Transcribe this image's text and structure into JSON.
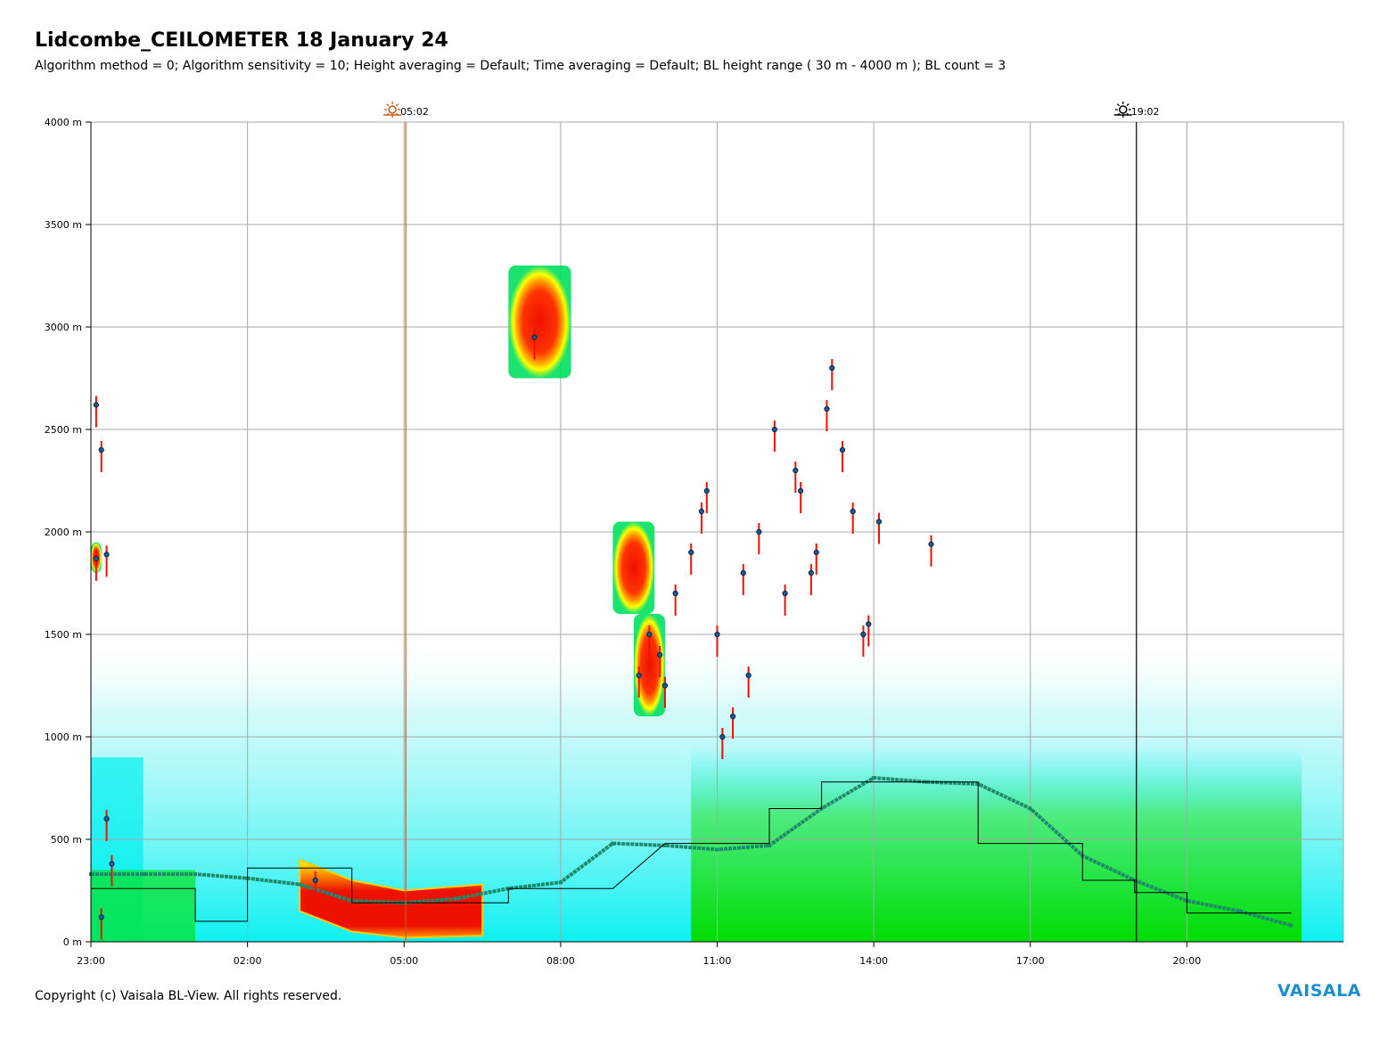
{
  "title": "Lidcombe_CEILOMETER 18 January 24",
  "subtitle": "Algorithm method = 0; Algorithm sensitivity = 10; Height averaging = Default; Time averaging = Default; BL height range ( 30 m - 4000 m ); BL count = 3",
  "copyright": "Copyright (c) Vaisala BL-View. All rights reserved.",
  "brand": "VAISALA",
  "brand_color": "#1a8fd0",
  "events": [
    {
      "label": "05:02",
      "hour": 6.033,
      "icon": "sunrise-icon",
      "color": "#c85a1a"
    },
    {
      "label": "19:02",
      "hour": 20.033,
      "icon": "sunset-icon",
      "color": "#000000"
    }
  ],
  "chart_data": {
    "type": "heatmap",
    "title": "Lidcombe_CEILOMETER 18 January 24",
    "xlabel": "",
    "ylabel": "",
    "x_range_hours_since_23": [
      0,
      24
    ],
    "x_ticks": [
      "23:00",
      "02:00",
      "05:00",
      "08:00",
      "11:00",
      "14:00",
      "17:00",
      "20:00"
    ],
    "x_tick_hours": [
      0,
      3,
      6,
      9,
      12,
      15,
      18,
      21
    ],
    "ylim": [
      0,
      4000
    ],
    "y_ticks": [
      "0 m",
      "500 m",
      "1000 m",
      "1500 m",
      "2000 m",
      "2500 m",
      "3000 m",
      "3500 m",
      "4000 m"
    ],
    "y_tick_values": [
      0,
      500,
      1000,
      1500,
      2000,
      2500,
      3000,
      3500,
      4000
    ],
    "grid": true,
    "colors": {
      "low": "#9ff5f5",
      "aerosol": "#00f0f0",
      "mid": "#00e000",
      "high": "#ffff00",
      "strong": "#ff8000",
      "max": "#ee1100",
      "bl_height": "#1e8a6a",
      "cloud_base": "#1a5a9a",
      "grey_marks": "#a0a0a0"
    },
    "cloud_layers": [
      {
        "start": 8.0,
        "end": 9.2,
        "bottom": 2750,
        "top": 3300
      },
      {
        "start": 10.0,
        "end": 10.8,
        "bottom": 1600,
        "top": 2050
      },
      {
        "start": 10.4,
        "end": 11.0,
        "bottom": 1100,
        "top": 1600
      },
      {
        "start": 0.0,
        "end": 0.2,
        "bottom": 1800,
        "top": 1950
      }
    ],
    "nocturnal_layer": [
      [
        4.0,
        300
      ],
      [
        5.0,
        200
      ],
      [
        6.0,
        150
      ],
      [
        7.5,
        180
      ]
    ],
    "bl_height_series": [
      [
        0.0,
        330
      ],
      [
        1.0,
        330
      ],
      [
        2.0,
        330
      ],
      [
        3.0,
        310
      ],
      [
        4.0,
        280
      ],
      [
        5.0,
        200
      ],
      [
        6.0,
        190
      ],
      [
        7.0,
        210
      ],
      [
        8.0,
        260
      ],
      [
        9.0,
        290
      ],
      [
        10.0,
        480
      ],
      [
        11.0,
        470
      ],
      [
        12.0,
        450
      ],
      [
        13.0,
        470
      ],
      [
        14.0,
        650
      ],
      [
        15.0,
        800
      ],
      [
        16.0,
        780
      ],
      [
        17.0,
        770
      ],
      [
        18.0,
        650
      ],
      [
        19.0,
        420
      ],
      [
        20.0,
        300
      ],
      [
        21.0,
        200
      ],
      [
        22.0,
        150
      ],
      [
        23.0,
        80
      ]
    ],
    "step_series": [
      [
        0.0,
        260
      ],
      [
        2.0,
        260
      ],
      [
        2.0,
        100
      ],
      [
        3.0,
        100
      ],
      [
        3.0,
        360
      ],
      [
        5.0,
        360
      ],
      [
        5.0,
        190
      ],
      [
        8.0,
        190
      ],
      [
        8.0,
        260
      ],
      [
        10.0,
        260
      ],
      [
        11.0,
        480
      ],
      [
        13.0,
        480
      ],
      [
        13.0,
        650
      ],
      [
        14.0,
        650
      ],
      [
        14.0,
        780
      ],
      [
        17.0,
        780
      ],
      [
        17.0,
        480
      ],
      [
        19.0,
        480
      ],
      [
        19.0,
        300
      ],
      [
        20.0,
        300
      ],
      [
        20.0,
        240
      ],
      [
        21.0,
        240
      ],
      [
        21.0,
        140
      ],
      [
        23.0,
        140
      ]
    ],
    "cloud_base_points": [
      [
        0.1,
        2620
      ],
      [
        0.2,
        2400
      ],
      [
        0.1,
        1870
      ],
      [
        0.3,
        1890
      ],
      [
        8.5,
        2950
      ],
      [
        10.5,
        1300
      ],
      [
        10.9,
        1400
      ],
      [
        11.2,
        1700
      ],
      [
        11.5,
        1900
      ],
      [
        11.8,
        2200
      ],
      [
        12.0,
        1500
      ],
      [
        12.3,
        1100
      ],
      [
        12.5,
        1800
      ],
      [
        12.8,
        2000
      ],
      [
        13.1,
        2500
      ],
      [
        13.3,
        1700
      ],
      [
        13.6,
        2200
      ],
      [
        13.9,
        1900
      ],
      [
        14.2,
        2800
      ],
      [
        14.4,
        2400
      ],
      [
        14.6,
        2100
      ],
      [
        14.8,
        1500
      ],
      [
        15.1,
        2050
      ],
      [
        16.1,
        1940
      ],
      [
        12.1,
        1000
      ],
      [
        11.0,
        1250
      ],
      [
        13.5,
        2300
      ],
      [
        14.1,
        2600
      ],
      [
        10.7,
        1500
      ],
      [
        11.7,
        2100
      ],
      [
        12.6,
        1300
      ],
      [
        13.8,
        1800
      ],
      [
        14.9,
        1550
      ],
      [
        0.3,
        600
      ],
      [
        0.4,
        380
      ],
      [
        0.2,
        120
      ],
      [
        4.3,
        300
      ]
    ]
  }
}
